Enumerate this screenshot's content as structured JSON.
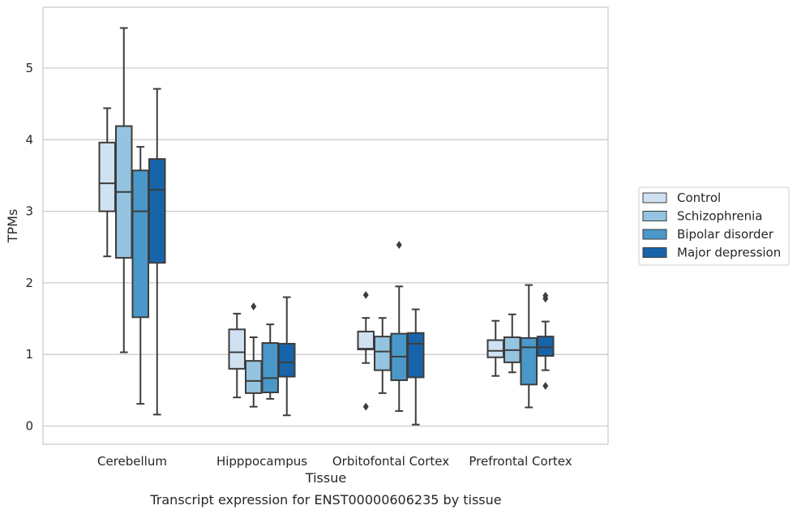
{
  "chart_data": {
    "type": "box",
    "caption": "Transcript expression for ENST00000606235 by tissue",
    "xlabel": "Tissue",
    "ylabel": "TPMs",
    "ylim": [
      -0.25,
      5.85
    ],
    "yticks": [
      0,
      1,
      2,
      3,
      4,
      5
    ],
    "grid": "horizontal",
    "legend_placement": "right",
    "categories": [
      "Cerebellum",
      "Hipppocampus",
      "Orbitofontal Cortex",
      "Prefrontal Cortex"
    ],
    "series": [
      {
        "name": "Control",
        "color": "#d0e1f2",
        "boxes": [
          {
            "whislo": 2.37,
            "q1": 3.0,
            "med": 3.39,
            "q3": 3.96,
            "whishi": 4.44,
            "fliers": []
          },
          {
            "whislo": 0.4,
            "q1": 0.8,
            "med": 1.03,
            "q3": 1.35,
            "whishi": 1.57,
            "fliers": []
          },
          {
            "whislo": 0.88,
            "q1": 1.07,
            "med": 1.08,
            "q3": 1.32,
            "whishi": 1.51,
            "fliers": [
              1.83,
              0.27
            ]
          },
          {
            "whislo": 0.7,
            "q1": 0.96,
            "med": 1.05,
            "q3": 1.2,
            "whishi": 1.47,
            "fliers": []
          }
        ]
      },
      {
        "name": "Schizophrenia",
        "color": "#94c4df",
        "boxes": [
          {
            "whislo": 1.03,
            "q1": 2.35,
            "med": 3.27,
            "q3": 4.19,
            "whishi": 5.56,
            "fliers": []
          },
          {
            "whislo": 0.27,
            "q1": 0.46,
            "med": 0.63,
            "q3": 0.91,
            "whishi": 1.24,
            "fliers": [
              1.67
            ]
          },
          {
            "whislo": 0.46,
            "q1": 0.78,
            "med": 1.04,
            "q3": 1.25,
            "whishi": 1.51,
            "fliers": []
          },
          {
            "whislo": 0.75,
            "q1": 0.89,
            "med": 1.06,
            "q3": 1.24,
            "whishi": 1.56,
            "fliers": []
          }
        ]
      },
      {
        "name": "Bipolar disorder",
        "color": "#4a98c9",
        "boxes": [
          {
            "whislo": 0.31,
            "q1": 1.52,
            "med": 3.0,
            "q3": 3.57,
            "whishi": 3.9,
            "fliers": []
          },
          {
            "whislo": 0.38,
            "q1": 0.47,
            "med": 0.67,
            "q3": 1.16,
            "whishi": 1.42,
            "fliers": []
          },
          {
            "whislo": 0.21,
            "q1": 0.64,
            "med": 0.97,
            "q3": 1.29,
            "whishi": 1.95,
            "fliers": [
              2.53
            ]
          },
          {
            "whislo": 0.26,
            "q1": 0.58,
            "med": 1.1,
            "q3": 1.23,
            "whishi": 1.97,
            "fliers": []
          }
        ]
      },
      {
        "name": "Major depression",
        "color": "#1764ab",
        "boxes": [
          {
            "whislo": 0.16,
            "q1": 2.28,
            "med": 3.3,
            "q3": 3.73,
            "whishi": 4.71,
            "fliers": []
          },
          {
            "whislo": 0.15,
            "q1": 0.69,
            "med": 0.89,
            "q3": 1.15,
            "whishi": 1.8,
            "fliers": []
          },
          {
            "whislo": 0.02,
            "q1": 0.68,
            "med": 1.15,
            "q3": 1.3,
            "whishi": 1.63,
            "fliers": []
          },
          {
            "whislo": 0.78,
            "q1": 0.98,
            "med": 1.1,
            "q3": 1.25,
            "whishi": 1.46,
            "fliers": [
              1.82,
              1.78,
              0.56
            ]
          }
        ]
      }
    ]
  }
}
